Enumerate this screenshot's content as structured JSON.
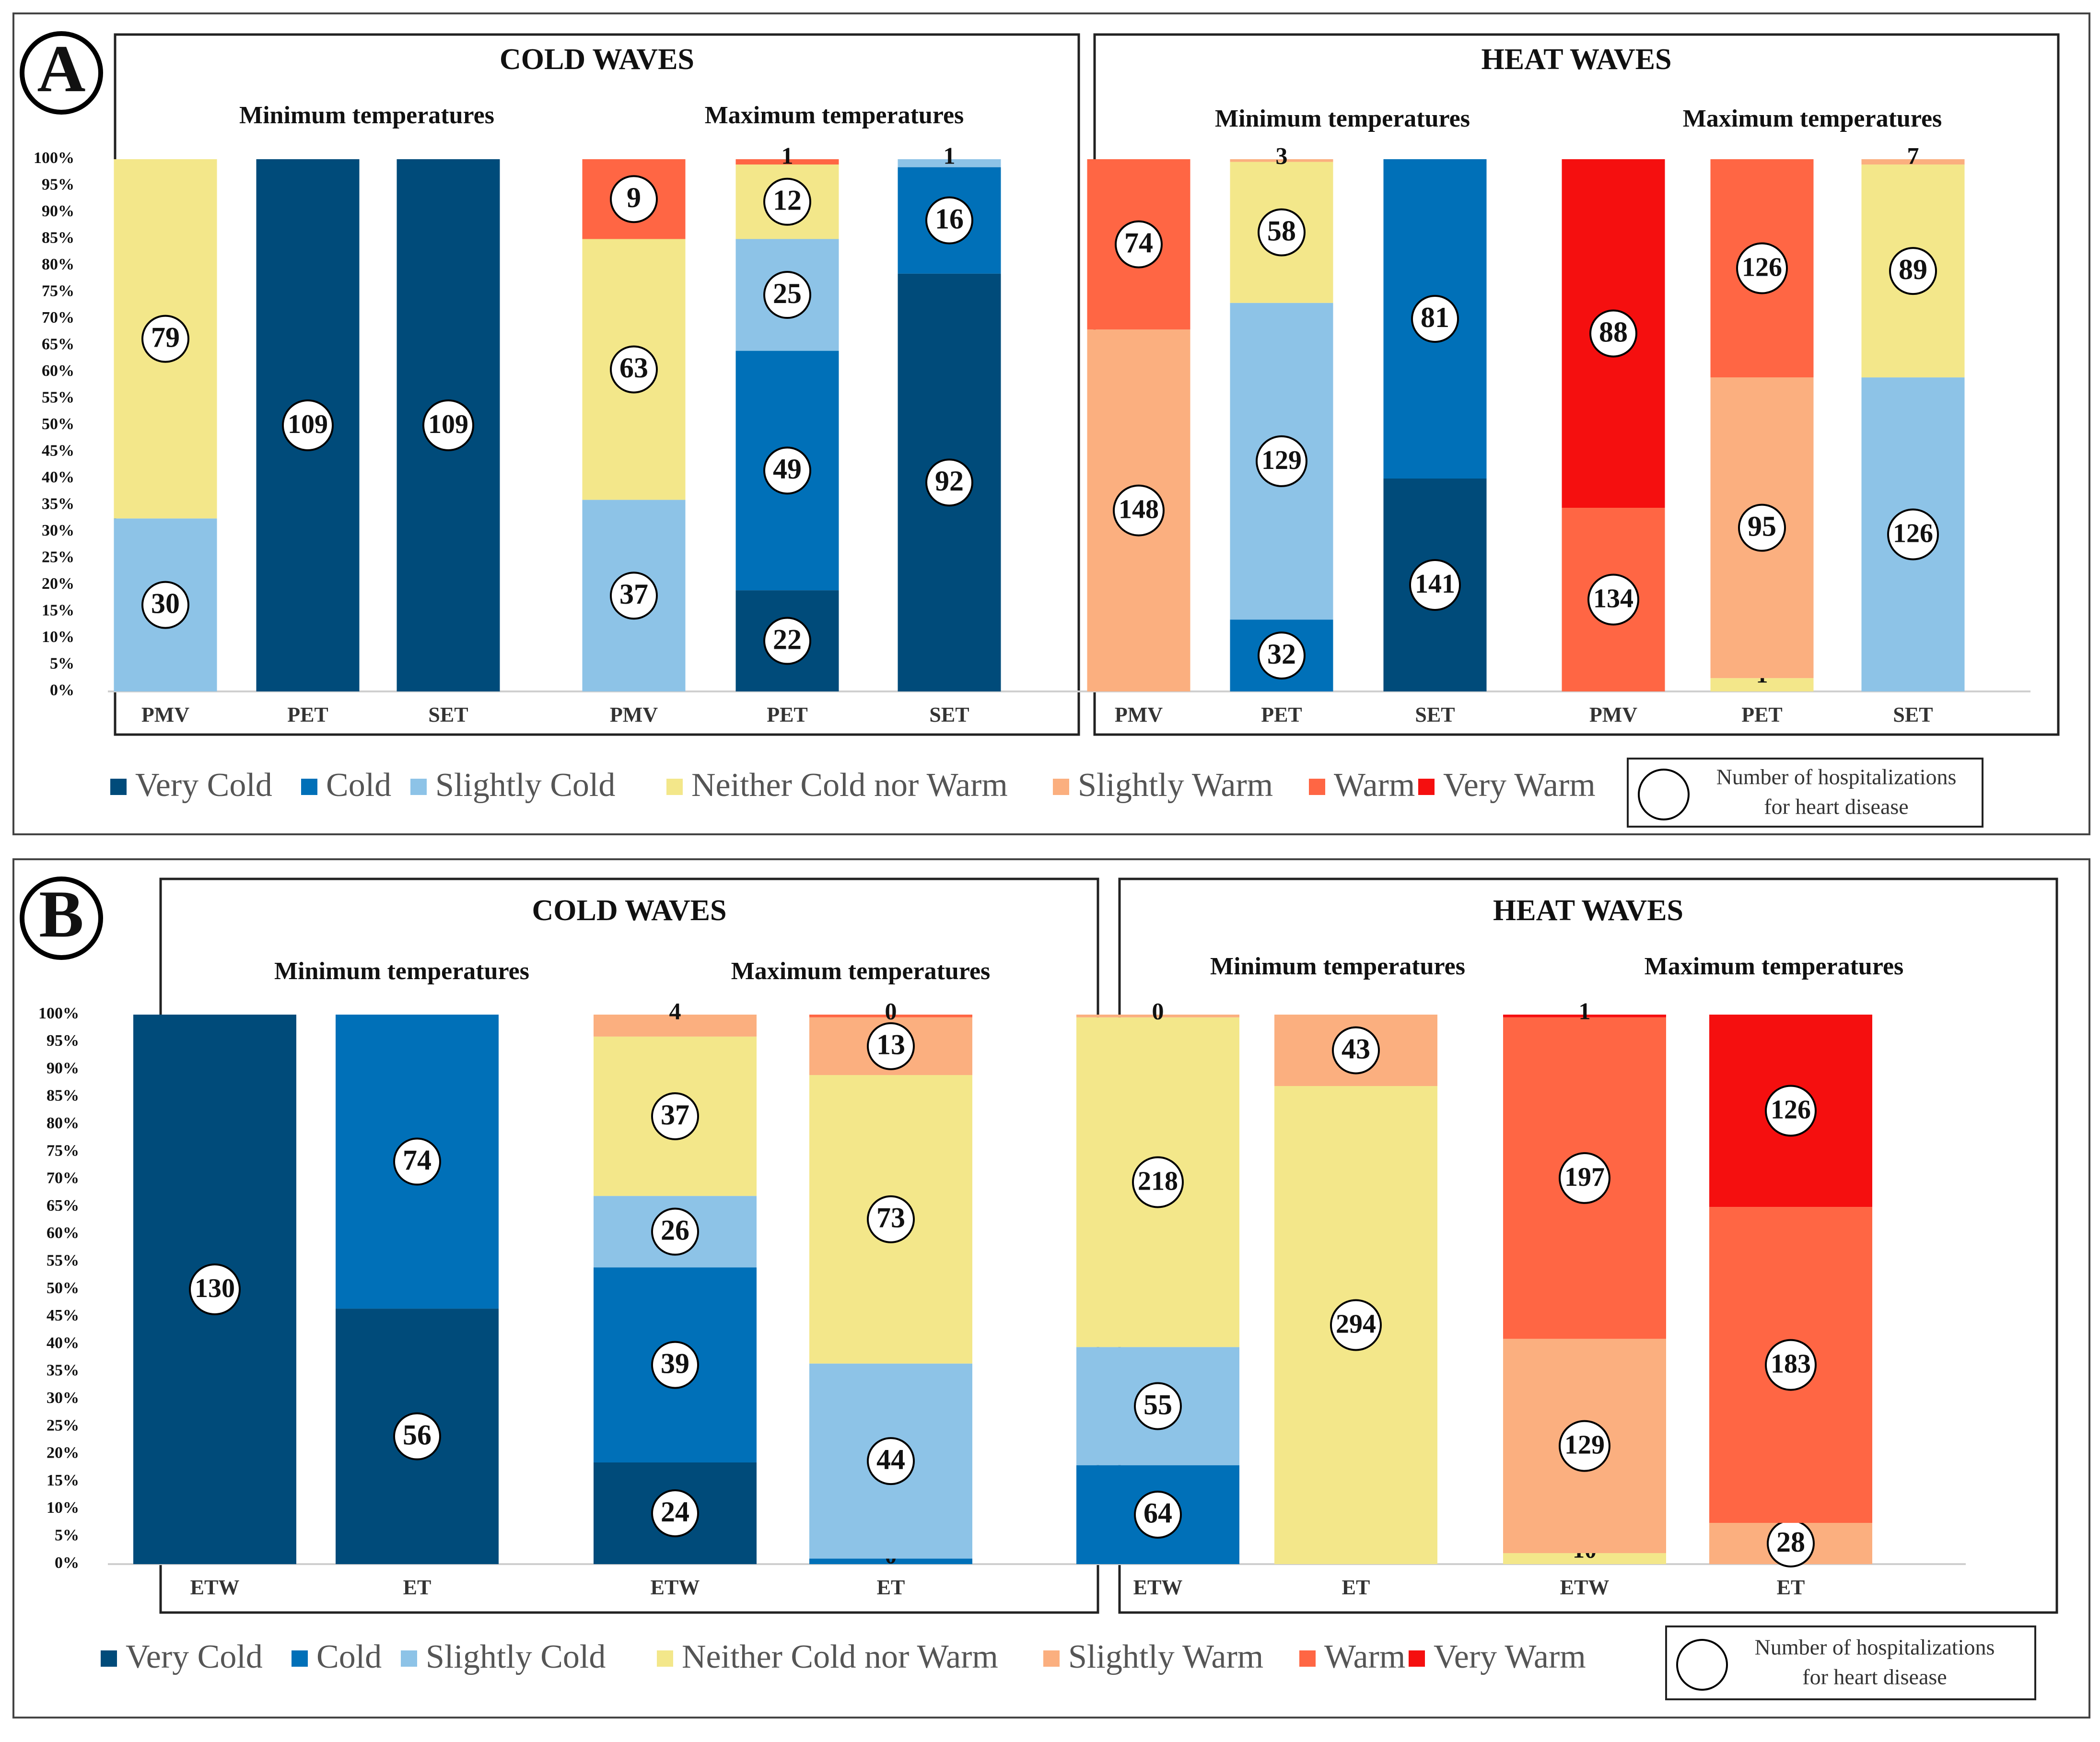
{
  "colors": {
    "Very Cold": "#004B7A",
    "Cold": "#0070B8",
    "Slightly Cold": "#8DC3E7",
    "Neither Cold nor Warm": "#F3E78A",
    "Slightly Warm": "#FBAF7F",
    "Warm": "#FF6644",
    "Very Warm": "#F50F0F"
  },
  "legend": {
    "items": [
      "Very Cold",
      "Cold",
      "Slightly Cold",
      "Neither Cold nor Warm",
      "Slightly Warm",
      "Warm",
      "Very Warm"
    ],
    "circle_line1": "Number of hospitalizations",
    "circle_line2": "for heart disease"
  },
  "y_ticks": [
    "0%",
    "5%",
    "10%",
    "15%",
    "20%",
    "25%",
    "30%",
    "35%",
    "40%",
    "45%",
    "50%",
    "55%",
    "60%",
    "65%",
    "70%",
    "75%",
    "80%",
    "85%",
    "90%",
    "95%",
    "100%"
  ],
  "chart_data": [
    {
      "type": "bar",
      "stacked": "100%",
      "panel_label": "A",
      "ylim": [
        0,
        100
      ],
      "groups": [
        {
          "title": "COLD WAVES",
          "subgroups": [
            {
              "title": "Minimum temperatures",
              "bars": [
                {
                  "category": "PMV",
                  "segments": [
                    {
                      "class": "Slightly Cold",
                      "count": 30,
                      "pct": 32.5
                    },
                    {
                      "class": "Neither Cold nor Warm",
                      "count": 79,
                      "pct": 67.5
                    }
                  ]
                },
                {
                  "category": "PET",
                  "segments": [
                    {
                      "class": "Very Cold",
                      "count": 109,
                      "pct": 100
                    }
                  ]
                },
                {
                  "category": "SET",
                  "segments": [
                    {
                      "class": "Very Cold",
                      "count": 109,
                      "pct": 100
                    }
                  ]
                }
              ]
            },
            {
              "title": "Maximum temperatures",
              "bars": [
                {
                  "category": "PMV",
                  "segments": [
                    {
                      "class": "Slightly Cold",
                      "count": 37,
                      "pct": 36
                    },
                    {
                      "class": "Neither Cold nor Warm",
                      "count": 63,
                      "pct": 49
                    },
                    {
                      "class": "Warm",
                      "count": 9,
                      "pct": 15
                    }
                  ]
                },
                {
                  "category": "PET",
                  "segments": [
                    {
                      "class": "Very Cold",
                      "count": 22,
                      "pct": 19
                    },
                    {
                      "class": "Cold",
                      "count": 49,
                      "pct": 45
                    },
                    {
                      "class": "Slightly Cold",
                      "count": 25,
                      "pct": 21
                    },
                    {
                      "class": "Neither Cold nor Warm",
                      "count": 12,
                      "pct": 14
                    },
                    {
                      "class": "Warm",
                      "count": 1,
                      "pct": 1
                    }
                  ]
                },
                {
                  "category": "SET",
                  "segments": [
                    {
                      "class": "Very Cold",
                      "count": 92,
                      "pct": 78.5
                    },
                    {
                      "class": "Cold",
                      "count": 16,
                      "pct": 20
                    },
                    {
                      "class": "Slightly Cold",
                      "count": 1,
                      "pct": 1.5
                    }
                  ]
                }
              ]
            }
          ]
        },
        {
          "title": "HEAT WAVES",
          "subgroups": [
            {
              "title": "Minimum temperatures",
              "bars": [
                {
                  "category": "PMV",
                  "segments": [
                    {
                      "class": "Slightly Warm",
                      "count": 148,
                      "pct": 68
                    },
                    {
                      "class": "Warm",
                      "count": 74,
                      "pct": 32
                    }
                  ]
                },
                {
                  "category": "PET",
                  "segments": [
                    {
                      "class": "Cold",
                      "count": 32,
                      "pct": 13.5
                    },
                    {
                      "class": "Slightly Cold",
                      "count": 129,
                      "pct": 59.5
                    },
                    {
                      "class": "Neither Cold nor Warm",
                      "count": 58,
                      "pct": 26.5
                    },
                    {
                      "class": "Slightly Warm",
                      "count": 3,
                      "pct": 0.5
                    }
                  ]
                },
                {
                  "category": "SET",
                  "segments": [
                    {
                      "class": "Very Cold",
                      "count": 141,
                      "pct": 40
                    },
                    {
                      "class": "Cold",
                      "count": 81,
                      "pct": 60
                    }
                  ]
                }
              ]
            },
            {
              "title": "Maximum temperatures",
              "bars": [
                {
                  "category": "PMV",
                  "segments": [
                    {
                      "class": "Warm",
                      "count": 134,
                      "pct": 34.5
                    },
                    {
                      "class": "Very Warm",
                      "count": 88,
                      "pct": 65.5
                    }
                  ]
                },
                {
                  "category": "PET",
                  "segments": [
                    {
                      "class": "Neither Cold nor Warm",
                      "count": 1,
                      "pct": 2.5
                    },
                    {
                      "class": "Slightly Warm",
                      "count": 95,
                      "pct": 56.5
                    },
                    {
                      "class": "Warm",
                      "count": 126,
                      "pct": 41
                    }
                  ]
                },
                {
                  "category": "SET",
                  "segments": [
                    {
                      "class": "Slightly Cold",
                      "count": 126,
                      "pct": 59
                    },
                    {
                      "class": "Neither Cold nor Warm",
                      "count": 89,
                      "pct": 40
                    },
                    {
                      "class": "Slightly Warm",
                      "count": 7,
                      "pct": 1
                    }
                  ]
                }
              ]
            }
          ]
        }
      ]
    },
    {
      "type": "bar",
      "stacked": "100%",
      "panel_label": "B",
      "ylim": [
        0,
        100
      ],
      "groups": [
        {
          "title": "COLD WAVES",
          "subgroups": [
            {
              "title": "Minimum temperatures",
              "bars": [
                {
                  "category": "ETW",
                  "segments": [
                    {
                      "class": "Very Cold",
                      "count": 130,
                      "pct": 100
                    }
                  ]
                },
                {
                  "category": "ET",
                  "segments": [
                    {
                      "class": "Very Cold",
                      "count": 56,
                      "pct": 46.5
                    },
                    {
                      "class": "Cold",
                      "count": 74,
                      "pct": 53.5
                    }
                  ]
                }
              ]
            },
            {
              "title": "Maximum temperatures",
              "bars": [
                {
                  "category": "ETW",
                  "segments": [
                    {
                      "class": "Very Cold",
                      "count": 24,
                      "pct": 18.5
                    },
                    {
                      "class": "Cold",
                      "count": 39,
                      "pct": 35.5
                    },
                    {
                      "class": "Slightly Cold",
                      "count": 26,
                      "pct": 13
                    },
                    {
                      "class": "Neither Cold nor Warm",
                      "count": 37,
                      "pct": 29
                    },
                    {
                      "class": "Slightly Warm",
                      "count": 4,
                      "pct": 4
                    }
                  ]
                },
                {
                  "category": "ET",
                  "segments": [
                    {
                      "class": "Cold",
                      "count": 0,
                      "pct": 1
                    },
                    {
                      "class": "Slightly Cold",
                      "count": 44,
                      "pct": 35.5
                    },
                    {
                      "class": "Neither Cold nor Warm",
                      "count": 73,
                      "pct": 52.5
                    },
                    {
                      "class": "Slightly Warm",
                      "count": 13,
                      "pct": 10.5
                    },
                    {
                      "class": "Warm",
                      "count": 0,
                      "pct": 0.5
                    }
                  ]
                }
              ]
            }
          ]
        },
        {
          "title": "HEAT WAVES",
          "subgroups": [
            {
              "title": "Minimum temperatures",
              "bars": [
                {
                  "category": "ETW",
                  "segments": [
                    {
                      "class": "Cold",
                      "count": 64,
                      "pct": 18
                    },
                    {
                      "class": "Slightly Cold",
                      "count": 55,
                      "pct": 21.5
                    },
                    {
                      "class": "Neither Cold nor Warm",
                      "count": 218,
                      "pct": 60
                    },
                    {
                      "class": "Slightly Warm",
                      "count": 0,
                      "pct": 0.5
                    }
                  ]
                },
                {
                  "category": "ET",
                  "segments": [
                    {
                      "class": "Neither Cold nor Warm",
                      "count": 294,
                      "pct": 87
                    },
                    {
                      "class": "Slightly Warm",
                      "count": 43,
                      "pct": 13
                    }
                  ]
                }
              ]
            },
            {
              "title": "Maximum temperatures",
              "bars": [
                {
                  "category": "ETW",
                  "segments": [
                    {
                      "class": "Neither Cold nor Warm",
                      "count": 10,
                      "pct": 2
                    },
                    {
                      "class": "Slightly Warm",
                      "count": 129,
                      "pct": 39
                    },
                    {
                      "class": "Warm",
                      "count": 197,
                      "pct": 58.5
                    },
                    {
                      "class": "Very Warm",
                      "count": 1,
                      "pct": 0.5
                    }
                  ]
                },
                {
                  "category": "ET",
                  "segments": [
                    {
                      "class": "Slightly Warm",
                      "count": 28,
                      "pct": 7.5
                    },
                    {
                      "class": "Warm",
                      "count": 183,
                      "pct": 57.5
                    },
                    {
                      "class": "Very Warm",
                      "count": 126,
                      "pct": 35
                    }
                  ]
                }
              ]
            }
          ]
        }
      ]
    }
  ]
}
